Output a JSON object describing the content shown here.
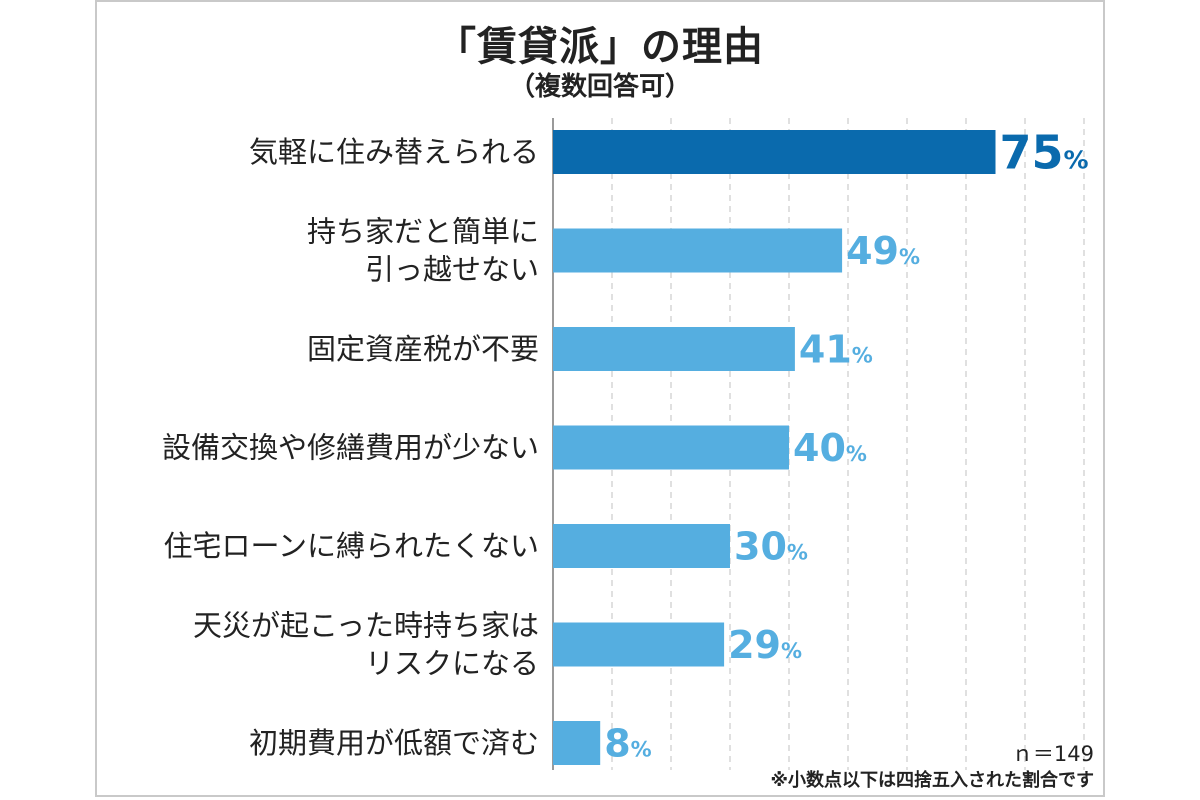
{
  "title": "「賃貸派」の理由",
  "subtitle": "（複数回答可）",
  "sample_note": "ｎ＝149",
  "rounding_note": "※小数点以下は四捨五入された割合です",
  "colors": {
    "highlight": "#0a6aad",
    "bar": "#55aee0",
    "grid": "#d6d6d6",
    "axis": "#9a9a9a"
  },
  "chart_data": {
    "type": "bar",
    "orientation": "horizontal",
    "title": "「賃貸派」の理由",
    "subtitle": "（複数回答可）",
    "unit": "%",
    "xlim": [
      0,
      90
    ],
    "grid": true,
    "categories": [
      [
        "気軽に住み替えられる"
      ],
      [
        "持ち家だと簡単に",
        "引っ越せない"
      ],
      [
        "固定資産税が不要"
      ],
      [
        "設備交換や修繕費用が少ない"
      ],
      [
        "住宅ローンに縛られたくない"
      ],
      [
        "天災が起こった時持ち家は",
        "リスクになる"
      ],
      [
        "初期費用が低額で済む"
      ]
    ],
    "values": [
      75,
      49,
      41,
      40,
      30,
      29,
      8
    ],
    "highlight_index": 0
  }
}
